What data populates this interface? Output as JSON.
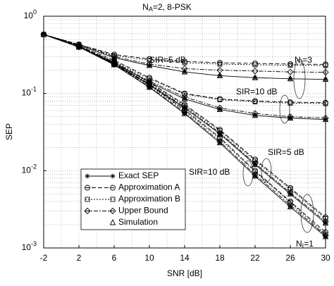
{
  "chart_data": {
    "type": "line",
    "title": {
      "base": "N",
      "sub": "A",
      "rest": "=2, 8-PSK"
    },
    "xlabel": "SNR [dB]",
    "ylabel": "SEP",
    "x": [
      -2,
      2,
      6,
      10,
      14,
      18,
      22,
      26,
      30
    ],
    "xlim": [
      -2,
      30
    ],
    "xticks": [
      -2,
      2,
      6,
      10,
      14,
      18,
      22,
      26,
      30
    ],
    "ylim": [
      0.001,
      1
    ],
    "log_y": true,
    "grid": true,
    "minor_grid": true,
    "yticks": [
      {
        "value": 0.001,
        "label": "10",
        "exponent": "-3"
      },
      {
        "value": 0.01,
        "label": "10",
        "exponent": "-2"
      },
      {
        "value": 0.1,
        "label": "10",
        "exponent": "-1"
      },
      {
        "value": 1,
        "label": "10",
        "exponent": "0"
      }
    ],
    "color": "#000000",
    "series": [
      {
        "name": "Exact SEP",
        "marker": "asterisk",
        "dash": "none",
        "curves": [
          [
            0.58,
            0.42,
            0.29,
            0.23,
            0.19,
            0.17,
            0.16,
            0.155,
            0.152
          ],
          [
            0.58,
            0.4,
            0.25,
            0.14,
            0.085,
            0.062,
            0.052,
            0.048,
            0.046
          ],
          [
            0.58,
            0.4,
            0.24,
            0.13,
            0.065,
            0.03,
            0.012,
            0.005,
            0.0021
          ],
          [
            0.58,
            0.4,
            0.235,
            0.12,
            0.055,
            0.023,
            0.0085,
            0.0034,
            0.0014
          ]
        ]
      },
      {
        "name": "Approximation A",
        "marker": "circle",
        "dash": "6,3",
        "curves": [
          [
            0.58,
            0.43,
            0.32,
            0.28,
            0.26,
            0.25,
            0.245,
            0.24,
            0.238
          ],
          [
            0.58,
            0.41,
            0.27,
            0.16,
            0.1,
            0.085,
            0.08,
            0.077,
            0.076
          ],
          [
            0.58,
            0.41,
            0.25,
            0.14,
            0.072,
            0.034,
            0.014,
            0.006,
            0.0025
          ],
          [
            0.58,
            0.41,
            0.245,
            0.13,
            0.062,
            0.027,
            0.01,
            0.004,
            0.0016
          ]
        ]
      },
      {
        "name": "Approximation B",
        "marker": "square",
        "dash": "2,2",
        "curves": [
          [
            0.58,
            0.43,
            0.31,
            0.27,
            0.25,
            0.24,
            0.235,
            0.232,
            0.23
          ],
          [
            0.58,
            0.41,
            0.26,
            0.155,
            0.098,
            0.083,
            0.078,
            0.075,
            0.074
          ],
          [
            0.58,
            0.41,
            0.25,
            0.138,
            0.07,
            0.033,
            0.0135,
            0.0058,
            0.0024
          ],
          [
            0.58,
            0.41,
            0.24,
            0.128,
            0.06,
            0.026,
            0.0097,
            0.0039,
            0.0015
          ]
        ]
      },
      {
        "name": "Upper Bound",
        "marker": "diamond",
        "dash": "6,2,2,2",
        "curves": [
          [
            0.58,
            0.43,
            0.3,
            0.24,
            0.21,
            0.2,
            0.195,
            0.19,
            0.188
          ],
          [
            0.58,
            0.4,
            0.255,
            0.145,
            0.09,
            0.065,
            0.055,
            0.05,
            0.048
          ],
          [
            0.58,
            0.4,
            0.245,
            0.133,
            0.067,
            0.031,
            0.0125,
            0.0052,
            0.0022
          ],
          [
            0.58,
            0.4,
            0.238,
            0.123,
            0.057,
            0.024,
            0.0089,
            0.0036,
            0.00145
          ]
        ]
      },
      {
        "name": "Simulation",
        "marker": "triangle",
        "dash": "none",
        "line": false,
        "curves": [
          [
            0.58,
            0.42,
            0.29,
            0.23,
            0.19,
            0.17,
            0.16,
            0.155,
            0.152
          ],
          [
            0.58,
            0.4,
            0.25,
            0.14,
            0.085,
            0.062,
            0.052,
            0.048,
            0.046
          ],
          [
            0.58,
            0.4,
            0.24,
            0.13,
            0.065,
            0.03,
            0.012,
            0.005,
            0.0021
          ],
          [
            0.58,
            0.4,
            0.235,
            0.12,
            0.055,
            0.023,
            0.0085,
            0.0034,
            0.0014
          ]
        ]
      }
    ],
    "annotations": [
      {
        "text": "SIR=5 dB"
      },
      {
        "base": "N",
        "sub": "I",
        "rest": "=3"
      },
      {
        "text": "SIR=10 dB"
      },
      {
        "text": "SIR=5 dB"
      },
      {
        "text": "SIR=10 dB"
      },
      {
        "base": "N",
        "sub": "I",
        "rest": "=1"
      }
    ]
  }
}
